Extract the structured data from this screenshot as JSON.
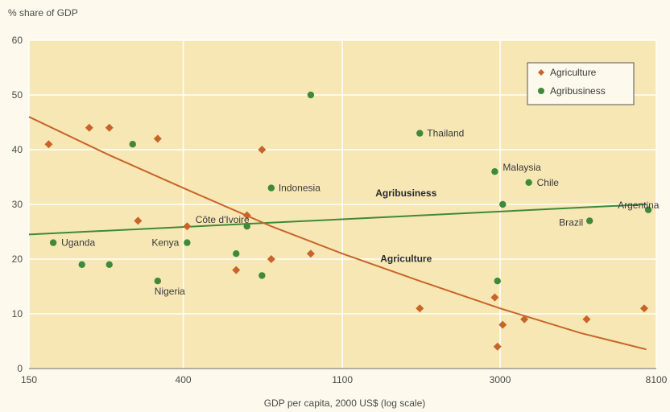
{
  "chart_data": {
    "type": "scatter",
    "title": "",
    "ylabel": "% share of GDP",
    "xlabel": "GDP per capita, 2000 US$ (log scale)",
    "x_scale": "log",
    "xlim": [
      150,
      8100
    ],
    "ylim": [
      0,
      60
    ],
    "x_ticks": [
      150,
      400,
      1100,
      3000,
      8100
    ],
    "x_tick_labels": [
      "150",
      "400",
      "1100",
      "3000",
      "8100"
    ],
    "y_ticks": [
      0,
      10,
      20,
      30,
      40,
      50,
      60
    ],
    "grid": true,
    "legend_position": "top-right",
    "colors": {
      "Agriculture": "#c8642a",
      "Agribusiness": "#3e8a3a",
      "background": "#f7e7b4"
    },
    "series": [
      {
        "name": "Agriculture",
        "marker": "diamond",
        "points": [
          {
            "x": 170,
            "y": 41
          },
          {
            "x": 220,
            "y": 44
          },
          {
            "x": 250,
            "y": 44
          },
          {
            "x": 340,
            "y": 42
          },
          {
            "x": 300,
            "y": 27
          },
          {
            "x": 410,
            "y": 26
          },
          {
            "x": 600,
            "y": 28
          },
          {
            "x": 560,
            "y": 18
          },
          {
            "x": 660,
            "y": 40
          },
          {
            "x": 700,
            "y": 20
          },
          {
            "x": 900,
            "y": 21
          },
          {
            "x": 1800,
            "y": 11
          },
          {
            "x": 2900,
            "y": 13
          },
          {
            "x": 2950,
            "y": 4
          },
          {
            "x": 3050,
            "y": 8
          },
          {
            "x": 3500,
            "y": 9
          },
          {
            "x": 5200,
            "y": 9
          },
          {
            "x": 7500,
            "y": 11
          }
        ]
      },
      {
        "name": "Agribusiness",
        "marker": "circle",
        "points": [
          {
            "x": 175,
            "y": 23,
            "label": "Uganda"
          },
          {
            "x": 210,
            "y": 19
          },
          {
            "x": 250,
            "y": 19
          },
          {
            "x": 290,
            "y": 41
          },
          {
            "x": 340,
            "y": 16,
            "label": "Nigeria"
          },
          {
            "x": 410,
            "y": 23,
            "label": "Kenya"
          },
          {
            "x": 560,
            "y": 21
          },
          {
            "x": 600,
            "y": 26,
            "label": "Côte d'Ivoire"
          },
          {
            "x": 660,
            "y": 17
          },
          {
            "x": 700,
            "y": 33,
            "label": "Indonesia"
          },
          {
            "x": 900,
            "y": 50
          },
          {
            "x": 1800,
            "y": 43,
            "label": "Thailand"
          },
          {
            "x": 2900,
            "y": 36,
            "label": "Malaysia"
          },
          {
            "x": 2950,
            "y": 16
          },
          {
            "x": 3050,
            "y": 30
          },
          {
            "x": 3600,
            "y": 34,
            "label": "Chile"
          },
          {
            "x": 5300,
            "y": 27,
            "label": "Brazil"
          },
          {
            "x": 7700,
            "y": 29,
            "label": "Argentina"
          }
        ]
      }
    ],
    "trend_lines": [
      {
        "series": "Agribusiness",
        "label": "Agribusiness",
        "points": [
          {
            "x": 150,
            "y": 24.5
          },
          {
            "x": 7600,
            "y": 30
          }
        ]
      },
      {
        "series": "Agriculture",
        "label": "Agriculture",
        "points": [
          {
            "x": 150,
            "y": 46
          },
          {
            "x": 250,
            "y": 39
          },
          {
            "x": 400,
            "y": 33
          },
          {
            "x": 700,
            "y": 26
          },
          {
            "x": 1100,
            "y": 21
          },
          {
            "x": 1800,
            "y": 16
          },
          {
            "x": 3000,
            "y": 11
          },
          {
            "x": 5000,
            "y": 6.5
          },
          {
            "x": 7600,
            "y": 3.5
          }
        ]
      }
    ]
  }
}
